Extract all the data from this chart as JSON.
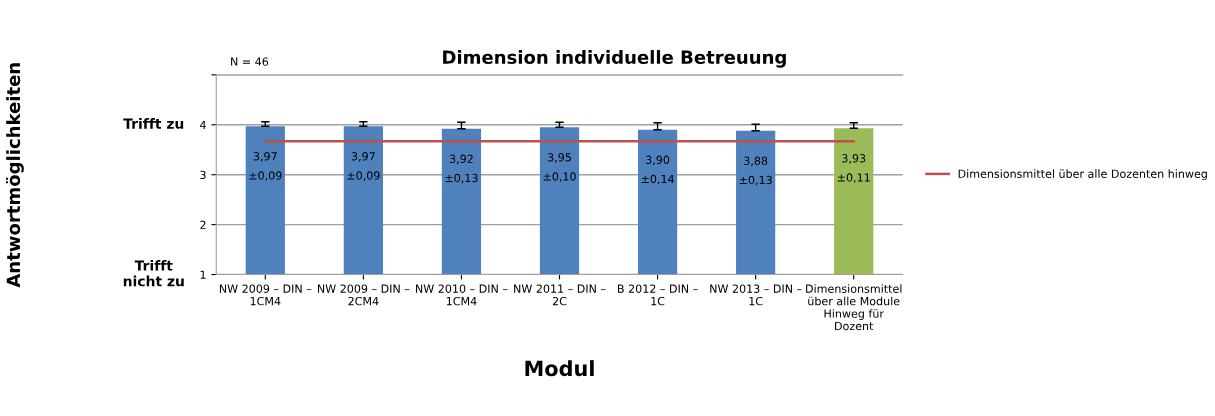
{
  "chart_data": {
    "type": "bar",
    "title": "Dimension individuelle Betreuung",
    "xlabel": "Modul",
    "annotations": [
      "N = 46",
      "Trifft zu",
      "Trifft\nnicht zu",
      "Antwortmöglichkeiten"
    ],
    "categories": [
      "NW 2009 – DIN –\n1CM4",
      "NW 2009 – DIN –\n2CM4",
      "NW 2010 – DIN –\n1CM4",
      "NW 2011 – DIN –\n2C",
      "B 2012 – DIN –\n1C",
      "NW 2013 – DIN –\n1C",
      "Dimensionsmittel\nüber alle Module\nHinweg für\nDozent"
    ],
    "series": [
      {
        "values": [
          3.97,
          3.97,
          3.92,
          3.95,
          3.9,
          3.88,
          3.93
        ],
        "colors": [
          "#4f81bd",
          "#4f81bd",
          "#4f81bd",
          "#4f81bd",
          "#4f81bd",
          "#4f81bd",
          "#9bbb59"
        ],
        "errors": [
          [
            3.97,
            4.06
          ],
          [
            3.97,
            4.06
          ],
          [
            3.92,
            4.05
          ],
          [
            3.95,
            4.05
          ],
          [
            3.9,
            4.04
          ],
          [
            3.88,
            4.01
          ],
          [
            3.93,
            4.04
          ]
        ],
        "value_labels": [
          "3,97\n±0,09",
          "3,97\n±0,09",
          "3,92\n±0,13",
          "3,95\n±0,10",
          "3,90\n±0,14",
          "3,88\n±0,13",
          "3,93\n±0,11"
        ]
      },
      {
        "type": "line",
        "name": "Dimensionsmittel über alle Dozenten hinweg",
        "color": "#c0504d",
        "values": [
          3.67,
          3.67,
          3.67,
          3.67,
          3.67,
          3.67,
          3.67
        ]
      }
    ],
    "ylim": [
      1,
      5
    ],
    "yticks": [
      1,
      2,
      3,
      4,
      {
        "value": 5,
        "label": null
      }
    ],
    "grid": "y",
    "legend": "right"
  }
}
